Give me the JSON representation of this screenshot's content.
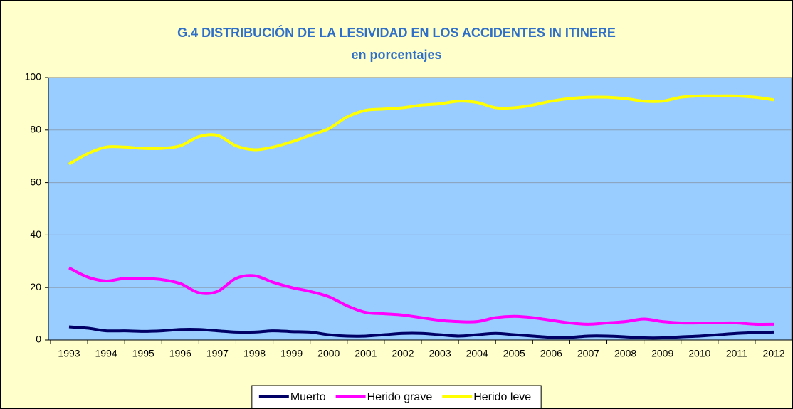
{
  "chart_data": {
    "type": "line",
    "title": "G.4 DISTRIBUCIÓN DE LA LESIVIDAD EN LOS ACCIDENTES IN ITINERE",
    "subtitle": "en porcentajes",
    "categories": [
      "1993",
      null,
      "1994",
      null,
      "1995",
      null,
      "1996",
      null,
      "1997",
      null,
      "1998",
      null,
      "1999",
      null,
      "2000",
      null,
      "2001",
      null,
      "2002",
      null,
      "2003",
      null,
      "2004",
      null,
      "2005",
      null,
      "2006",
      null,
      "2007",
      null,
      "2008",
      null,
      "2009",
      null,
      "2010",
      null,
      "2011",
      null,
      "2012"
    ],
    "series": [
      {
        "name": "Muerto",
        "color": "#000066",
        "values": [
          5,
          4.5,
          3.5,
          3.5,
          3.3,
          3.5,
          4,
          4,
          3.5,
          3,
          3,
          3.5,
          3.2,
          3,
          2,
          1.5,
          1.5,
          2,
          2.5,
          2.5,
          2,
          1.5,
          2,
          2.5,
          2,
          1.5,
          1,
          1,
          1.5,
          1.5,
          1.2,
          0.8,
          0.8,
          1.2,
          1.5,
          2,
          2.5,
          2.8,
          3
        ]
      },
      {
        "name": "Herido grave",
        "color": "#ff00ff",
        "values": [
          27.5,
          24,
          22.5,
          23.5,
          23.5,
          23,
          21.5,
          18,
          18.5,
          23.5,
          24.5,
          22,
          20,
          18.5,
          16.5,
          13,
          10.5,
          10,
          9.5,
          8.5,
          7.5,
          7,
          7,
          8.5,
          9,
          8.5,
          7.5,
          6.5,
          6,
          6.5,
          7,
          8,
          7,
          6.5,
          6.5,
          6.5,
          6.5,
          6,
          6
        ]
      },
      {
        "name": "Herido leve",
        "color": "#ffff00",
        "values": [
          67,
          71,
          73.5,
          73.5,
          73,
          73,
          74,
          77.5,
          78,
          74,
          72.5,
          73.5,
          75.5,
          78,
          80.5,
          85,
          87.5,
          88,
          88.5,
          89.5,
          90,
          91,
          90.5,
          88.5,
          88.5,
          89.5,
          91,
          92,
          92.5,
          92.5,
          92,
          91,
          91,
          92.5,
          93,
          93,
          93,
          92.5,
          91.5
        ]
      }
    ],
    "ylim": [
      0,
      100
    ],
    "yticks": [
      0,
      20,
      40,
      60,
      80,
      100
    ],
    "grid": true,
    "legend": "bottom"
  }
}
